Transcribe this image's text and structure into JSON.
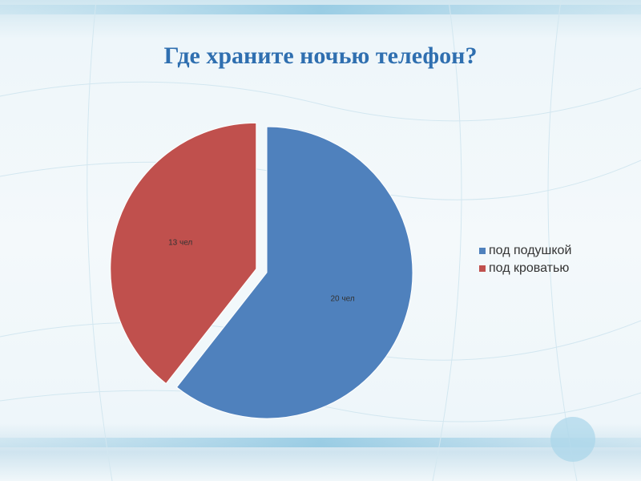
{
  "chart_data": {
    "type": "pie",
    "title": "Где храните ночью телефон?",
    "categories": [
      "под подушкой",
      "под кроватью"
    ],
    "values": [
      20,
      13
    ],
    "value_labels": [
      "20 чел",
      "13 чел"
    ],
    "colors": [
      "#4f81bd",
      "#c0504d"
    ],
    "exploded": [
      false,
      true
    ],
    "legend": "right"
  }
}
